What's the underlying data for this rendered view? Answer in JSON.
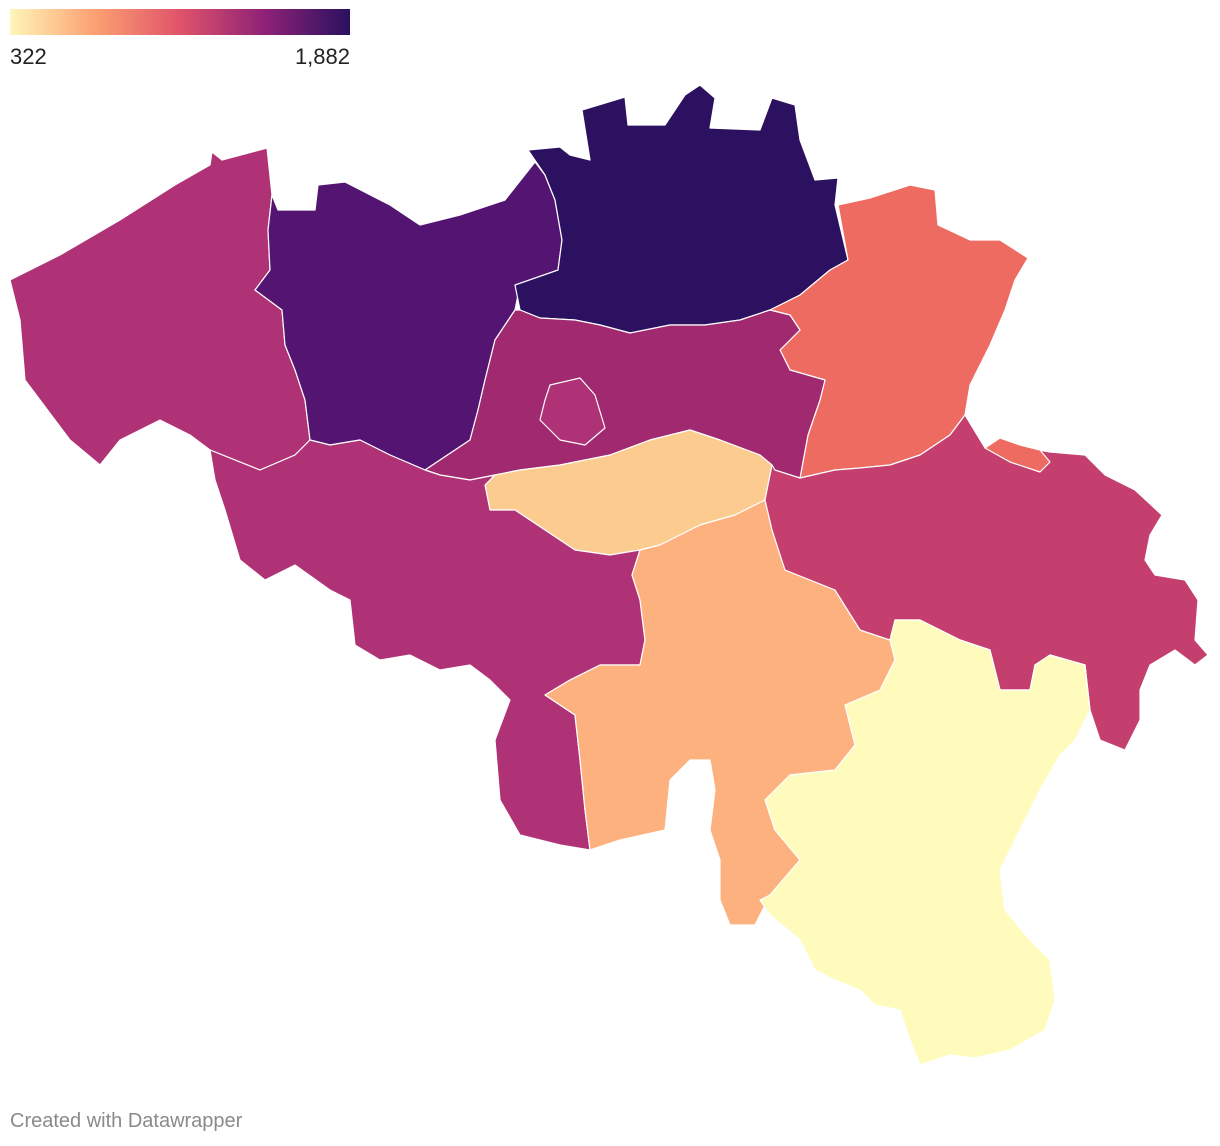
{
  "legend": {
    "min_label": "322",
    "max_label": "1,882",
    "min": 322,
    "max": 1882
  },
  "credit": "Created with Datawrapper",
  "colors": {
    "scale": [
      "#fefbbd",
      "#fcb17e",
      "#ee6b5e",
      "#c53f6e",
      "#a0286e",
      "#541572",
      "#2c1160"
    ]
  },
  "regions": [
    {
      "id": "west-flanders",
      "color": "#b03276"
    },
    {
      "id": "east-flanders",
      "color": "#541572"
    },
    {
      "id": "antwerp",
      "color": "#2c1160"
    },
    {
      "id": "limburg",
      "color": "#ee6b61"
    },
    {
      "id": "flemish-brabant",
      "color": "#a0296f"
    },
    {
      "id": "brussels",
      "color": "#b03276"
    },
    {
      "id": "walloon-brabant",
      "color": "#fccb8f"
    },
    {
      "id": "hainaut",
      "color": "#b03276"
    },
    {
      "id": "namur",
      "color": "#fcb17e"
    },
    {
      "id": "liege",
      "color": "#c53f6e"
    },
    {
      "id": "liege-east",
      "color": "#ee6b61"
    },
    {
      "id": "luxembourg",
      "color": "#fefbbd"
    }
  ]
}
